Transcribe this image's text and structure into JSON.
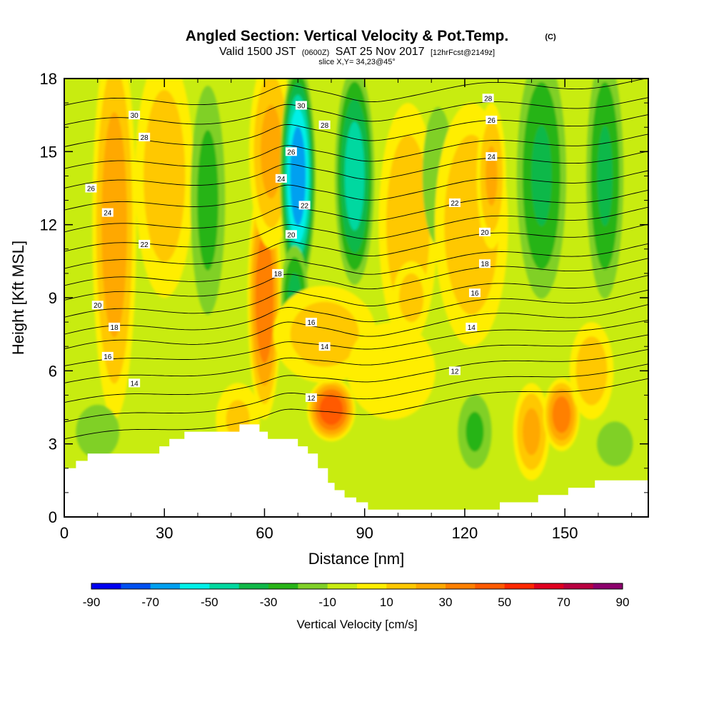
{
  "header": {
    "title": "Angled Section: Vertical Velocity & Pot.Temp.",
    "title_unit": "(C)",
    "valid_prefix": "Valid 1500 JST",
    "valid_zulu": "(0600Z)",
    "valid_date": "SAT 25 Nov 2017",
    "forecast": "[12hrFcst@2149z]",
    "slice": "slice X,Y= 34,23@45°"
  },
  "chart_data": {
    "type": "heatmap",
    "xlabel": "Distance [nm]",
    "ylabel": "Height [Kft MSL]",
    "xlim": [
      0,
      175
    ],
    "ylim": [
      0,
      18
    ],
    "xticks": [
      0,
      30,
      60,
      90,
      120,
      150
    ],
    "yticks": [
      0,
      3,
      6,
      9,
      12,
      15,
      18
    ],
    "colorbar": {
      "label": "Vertical Velocity [cm/s]",
      "tick_values": [
        -90,
        -70,
        -50,
        -30,
        -10,
        10,
        30,
        50,
        70,
        90
      ],
      "tick_labels": [
        "-90",
        "-70",
        "-50",
        "-30",
        "-10",
        "10",
        "30",
        "50",
        "70",
        "90"
      ],
      "bins": [
        {
          "from": -90,
          "to": -80,
          "color": "#0000f0"
        },
        {
          "from": -80,
          "to": -70,
          "color": "#0050f0"
        },
        {
          "from": -70,
          "to": -60,
          "color": "#00a0f0"
        },
        {
          "from": -60,
          "to": -50,
          "color": "#00f0e8"
        },
        {
          "from": -50,
          "to": -40,
          "color": "#00d8a0"
        },
        {
          "from": -40,
          "to": -30,
          "color": "#10b848"
        },
        {
          "from": -30,
          "to": -20,
          "color": "#28b418"
        },
        {
          "from": -20,
          "to": -10,
          "color": "#80d028"
        },
        {
          "from": -10,
          "to": 0,
          "color": "#c8ec10"
        },
        {
          "from": 0,
          "to": 10,
          "color": "#ffee00"
        },
        {
          "from": 10,
          "to": 20,
          "color": "#ffc800"
        },
        {
          "from": 20,
          "to": 30,
          "color": "#ffa800"
        },
        {
          "from": 30,
          "to": 40,
          "color": "#ff8000"
        },
        {
          "from": 40,
          "to": 50,
          "color": "#ff5a00"
        },
        {
          "from": 50,
          "to": 60,
          "color": "#ff2800"
        },
        {
          "from": 60,
          "to": 70,
          "color": "#e00020"
        },
        {
          "from": 70,
          "to": 80,
          "color": "#b80040"
        },
        {
          "from": 80,
          "to": 90,
          "color": "#8c006c"
        }
      ]
    },
    "vertical_velocity_cells": [
      {
        "x": 15,
        "z": 12,
        "sx": 3,
        "sz": 8,
        "v": 26
      },
      {
        "x": 30,
        "z": 14,
        "sx": 4,
        "sz": 5,
        "v": 16
      },
      {
        "x": 43,
        "z": 13,
        "sx": 3,
        "sz": 6,
        "v": -22
      },
      {
        "x": 60,
        "z": 9,
        "sx": 2.3,
        "sz": 5,
        "v": 38
      },
      {
        "x": 62,
        "z": 15,
        "sx": 3,
        "sz": 4,
        "v": 22
      },
      {
        "x": 70,
        "z": 14,
        "sx": 2.6,
        "sz": 5,
        "v": -68
      },
      {
        "x": 69,
        "z": 9,
        "sx": 2.2,
        "sz": 2.5,
        "v": -32
      },
      {
        "x": 80,
        "z": 4.4,
        "sx": 3.3,
        "sz": 1.3,
        "v": 48
      },
      {
        "x": 78,
        "z": 7.5,
        "sx": 7,
        "sz": 2,
        "v": 14
      },
      {
        "x": 87,
        "z": 14,
        "sx": 3,
        "sz": 5,
        "v": -46
      },
      {
        "x": 103,
        "z": 12,
        "sx": 4,
        "sz": 5,
        "v": 18
      },
      {
        "x": 104,
        "z": 9,
        "sx": 2.5,
        "sz": 1.5,
        "v": 14
      },
      {
        "x": 112,
        "z": 14,
        "sx": 3,
        "sz": 4,
        "v": -16
      },
      {
        "x": 122,
        "z": 12,
        "sx": 5,
        "sz": 5,
        "v": 18
      },
      {
        "x": 128,
        "z": 14,
        "sx": 2,
        "sz": 3,
        "v": 20
      },
      {
        "x": 123,
        "z": 3.5,
        "sx": 3,
        "sz": 2,
        "v": -20
      },
      {
        "x": 143,
        "z": 14,
        "sx": 4,
        "sz": 6,
        "v": -30
      },
      {
        "x": 140,
        "z": 3.5,
        "sx": 2.5,
        "sz": 2,
        "v": 22
      },
      {
        "x": 149,
        "z": 4.2,
        "sx": 2.5,
        "sz": 1.5,
        "v": 36
      },
      {
        "x": 162,
        "z": 14,
        "sx": 3,
        "sz": 6,
        "v": -30
      },
      {
        "x": 158,
        "z": 6,
        "sx": 3,
        "sz": 2,
        "v": 16
      },
      {
        "x": 165,
        "z": 3,
        "sx": 4,
        "sz": 1.5,
        "v": -12
      },
      {
        "x": 10,
        "z": 3.5,
        "sx": 4,
        "sz": 1.5,
        "v": -18
      },
      {
        "x": 52,
        "z": 4,
        "sx": 3,
        "sz": 1.5,
        "v": 10
      },
      {
        "x": 98,
        "z": 6,
        "sx": 6,
        "sz": 2,
        "v": 8
      }
    ],
    "vertical_velocity_background_cm_s": -3,
    "potential_temperature_isentropes_C": [
      {
        "theta": 12,
        "z0": 3.2,
        "z_end": 5.6
      },
      {
        "theta": 13,
        "z0": 3.9,
        "z_end": 6.2
      },
      {
        "theta": 14,
        "z0": 4.7,
        "z_end": 6.8
      },
      {
        "theta": 15,
        "z0": 5.5,
        "z_end": 7.4
      },
      {
        "theta": 16,
        "z0": 6.2,
        "z_end": 8.0
      },
      {
        "theta": 17,
        "z0": 6.9,
        "z_end": 8.6
      },
      {
        "theta": 18,
        "z0": 7.5,
        "z_end": 9.2
      },
      {
        "theta": 19,
        "z0": 8.2,
        "z_end": 9.8
      },
      {
        "theta": 20,
        "z0": 8.9,
        "z_end": 10.5
      },
      {
        "theta": 21,
        "z0": 9.5,
        "z_end": 11.1
      },
      {
        "theta": 22,
        "z0": 10.2,
        "z_end": 11.9
      },
      {
        "theta": 23,
        "z0": 10.9,
        "z_end": 12.6
      },
      {
        "theta": 24,
        "z0": 11.7,
        "z_end": 13.3
      },
      {
        "theta": 25,
        "z0": 12.6,
        "z_end": 14.1
      },
      {
        "theta": 26,
        "z0": 13.5,
        "z_end": 14.9
      },
      {
        "theta": 27,
        "z0": 14.3,
        "z_end": 15.6
      },
      {
        "theta": 28,
        "z0": 15.2,
        "z_end": 16.4
      },
      {
        "theta": 29,
        "z0": 16.1,
        "z_end": 17.1
      },
      {
        "theta": 30,
        "z0": 16.9,
        "z_end": 17.9
      }
    ],
    "contour_labels": [
      {
        "text": "30",
        "x": 21,
        "z": 16.5
      },
      {
        "text": "28",
        "x": 24,
        "z": 15.6
      },
      {
        "text": "26",
        "x": 8,
        "z": 13.5
      },
      {
        "text": "24",
        "x": 13,
        "z": 12.5
      },
      {
        "text": "22",
        "x": 24,
        "z": 11.2
      },
      {
        "text": "20",
        "x": 10,
        "z": 8.7
      },
      {
        "text": "18",
        "x": 15,
        "z": 7.8
      },
      {
        "text": "16",
        "x": 13,
        "z": 6.6
      },
      {
        "text": "14",
        "x": 21,
        "z": 5.5
      },
      {
        "text": "30",
        "x": 71,
        "z": 16.9
      },
      {
        "text": "28",
        "x": 78,
        "z": 16.1
      },
      {
        "text": "26",
        "x": 68,
        "z": 15.0
      },
      {
        "text": "24",
        "x": 65,
        "z": 13.9
      },
      {
        "text": "22",
        "x": 72,
        "z": 12.8
      },
      {
        "text": "20",
        "x": 68,
        "z": 11.6
      },
      {
        "text": "18",
        "x": 64,
        "z": 10.0
      },
      {
        "text": "16",
        "x": 74,
        "z": 8.0
      },
      {
        "text": "14",
        "x": 78,
        "z": 7.0
      },
      {
        "text": "12",
        "x": 74,
        "z": 4.9
      },
      {
        "text": "28",
        "x": 127,
        "z": 17.2
      },
      {
        "text": "26",
        "x": 128,
        "z": 16.3
      },
      {
        "text": "24",
        "x": 128,
        "z": 14.8
      },
      {
        "text": "22",
        "x": 117,
        "z": 12.9
      },
      {
        "text": "20",
        "x": 126,
        "z": 11.7
      },
      {
        "text": "18",
        "x": 126,
        "z": 10.4
      },
      {
        "text": "16",
        "x": 123,
        "z": 9.2
      },
      {
        "text": "14",
        "x": 122,
        "z": 7.8
      },
      {
        "text": "12",
        "x": 117,
        "z": 6.0
      }
    ],
    "terrain_heights_kft": [
      [
        0,
        2.0
      ],
      [
        3.5,
        2.0
      ],
      [
        3.5,
        2.3
      ],
      [
        7,
        2.3
      ],
      [
        7,
        2.6
      ],
      [
        28.5,
        2.6
      ],
      [
        28.5,
        2.9
      ],
      [
        31.5,
        2.9
      ],
      [
        31.5,
        3.2
      ],
      [
        36,
        3.2
      ],
      [
        36,
        3.5
      ],
      [
        52.5,
        3.5
      ],
      [
        52.5,
        3.8
      ],
      [
        58.5,
        3.8
      ],
      [
        58.5,
        3.5
      ],
      [
        61,
        3.5
      ],
      [
        61,
        3.2
      ],
      [
        70,
        3.2
      ],
      [
        70,
        2.9
      ],
      [
        73,
        2.9
      ],
      [
        73,
        2.6
      ],
      [
        76,
        2.6
      ],
      [
        76,
        2.0
      ],
      [
        79,
        2.0
      ],
      [
        79,
        1.4
      ],
      [
        81,
        1.4
      ],
      [
        81,
        1.1
      ],
      [
        84,
        1.1
      ],
      [
        84,
        0.8
      ],
      [
        87.5,
        0.8
      ],
      [
        87.5,
        0.6
      ],
      [
        91,
        0.6
      ],
      [
        91,
        0.3
      ],
      [
        130.5,
        0.3
      ],
      [
        130.5,
        0.6
      ],
      [
        142,
        0.6
      ],
      [
        142,
        0.9
      ],
      [
        151,
        0.9
      ],
      [
        151,
        1.2
      ],
      [
        159,
        1.2
      ],
      [
        159,
        1.5
      ],
      [
        175,
        1.5
      ]
    ]
  }
}
